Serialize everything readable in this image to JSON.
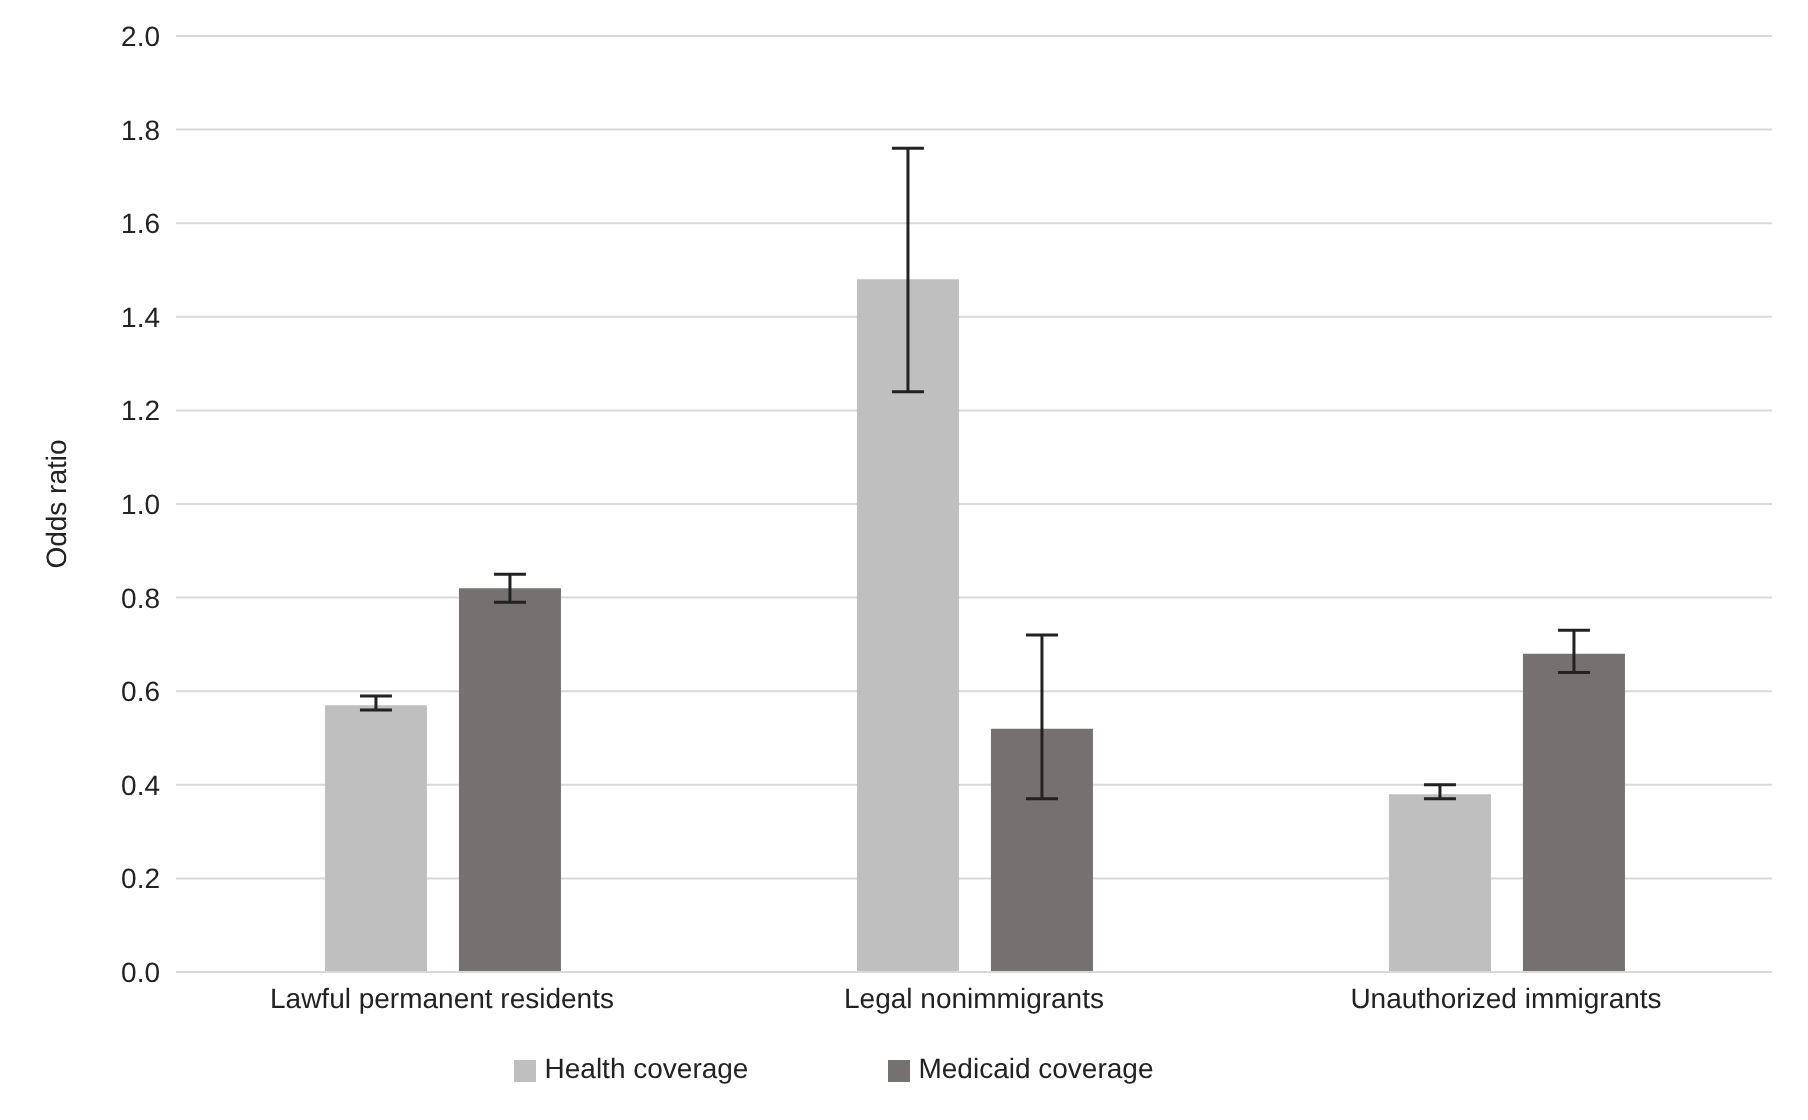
{
  "chart_data": {
    "type": "bar",
    "ylabel": "Odds ratio",
    "categories": [
      "Lawful permanent residents",
      "Legal nonimmigrants",
      "Unauthorized immigrants"
    ],
    "series": [
      {
        "name": "Health coverage",
        "color": "#bfbfbf",
        "values": [
          0.57,
          1.48,
          0.38
        ],
        "errors": [
          [
            0.56,
            0.59
          ],
          [
            1.24,
            1.76
          ],
          [
            0.37,
            0.4
          ]
        ]
      },
      {
        "name": "Medicaid coverage",
        "color": "#767171",
        "values": [
          0.82,
          0.52,
          0.68
        ],
        "errors": [
          [
            0.79,
            0.85
          ],
          [
            0.37,
            0.72
          ],
          [
            0.64,
            0.73
          ]
        ]
      }
    ],
    "ylim": [
      0,
      2
    ],
    "yticks": [
      {
        "value": 0,
        "label": "0.0"
      },
      {
        "value": 0.2,
        "label": "0.2"
      },
      {
        "value": 0.4,
        "label": "0.4"
      },
      {
        "value": 0.6,
        "label": "0.6"
      },
      {
        "value": 0.8,
        "label": "0.8"
      },
      {
        "value": 1,
        "label": "1.0"
      },
      {
        "value": 1.2,
        "label": "1.2"
      },
      {
        "value": 1.4,
        "label": "1.4"
      },
      {
        "value": 1.6,
        "label": "1.6"
      },
      {
        "value": 1.8,
        "label": "1.8"
      },
      {
        "value": 2,
        "label": "2.0"
      }
    ],
    "grid": "y",
    "legend": "bottom"
  }
}
